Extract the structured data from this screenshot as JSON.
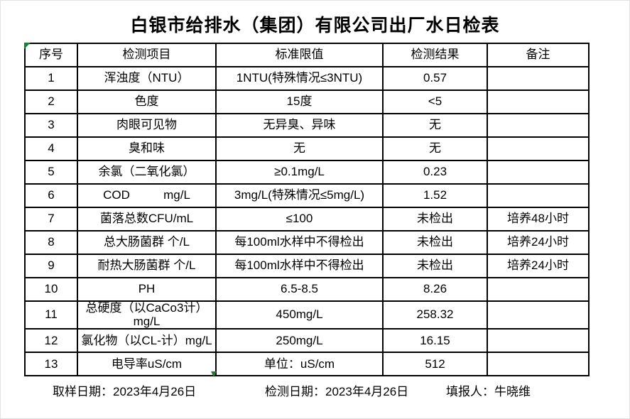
{
  "title": "白银市给排水（集团）有限公司出厂水日检表",
  "table": {
    "headers": [
      "序号",
      "检测项目",
      "标准限值",
      "检测结果",
      "备注"
    ],
    "rows": [
      {
        "no": "1",
        "item": "浑浊度（NTU）",
        "standard": "1NTU(特殊情况≤3NTU)",
        "result": "0.57",
        "remark": ""
      },
      {
        "no": "2",
        "item": "色度",
        "standard": "15度",
        "result": "<5",
        "remark": ""
      },
      {
        "no": "3",
        "item": "肉眼可见物",
        "standard": "无异臭、异味",
        "result": "无",
        "remark": ""
      },
      {
        "no": "4",
        "item": "臭和味",
        "standard": "无",
        "result": "无",
        "remark": ""
      },
      {
        "no": "5",
        "item": "余氯（二氧化氯）",
        "standard": "≥0.1mg/L",
        "result": "0.23",
        "remark": ""
      },
      {
        "no": "6",
        "item": "COD          mg/L",
        "standard": "3mg/L(特殊情况≤5mg/L)",
        "result": "1.52",
        "remark": ""
      },
      {
        "no": "7",
        "item": "菌落总数CFU/mL",
        "standard": "≤100",
        "result": "未检出",
        "remark": "培养48小时"
      },
      {
        "no": "8",
        "item": "总大肠菌群 个/L",
        "standard": "每100ml水样中不得检出",
        "result": "未检出",
        "remark": "培养24小时"
      },
      {
        "no": "9",
        "item": "耐热大肠菌群 个/L",
        "standard": "每100ml水样中不得检出",
        "result": "未检出",
        "remark": "培养24小时"
      },
      {
        "no": "10",
        "item": "PH",
        "standard": "6.5-8.5",
        "result": "8.26",
        "remark": ""
      },
      {
        "no": "11",
        "item": "总硬度（以CaCo3计）mg/L",
        "standard": "450mg/L",
        "result": "258.32",
        "remark": ""
      },
      {
        "no": "12",
        "item": "氯化物（以CL-计）mg/L",
        "standard": "250mg/L",
        "result": "16.15",
        "remark": ""
      },
      {
        "no": "13",
        "item": "电导率uS/cm",
        "standard": "单位：uS/cm",
        "result": "512",
        "remark": ""
      }
    ]
  },
  "footer": {
    "sampling_date": "取样日期：2023年4月26日",
    "test_date": "检测日期：2023年4月26日",
    "reporter": "填报人：牛晓维"
  },
  "colors": {
    "border": "#000000",
    "artifact_green": "#1e7b36",
    "background": "#ffffff",
    "text": "#000000"
  }
}
